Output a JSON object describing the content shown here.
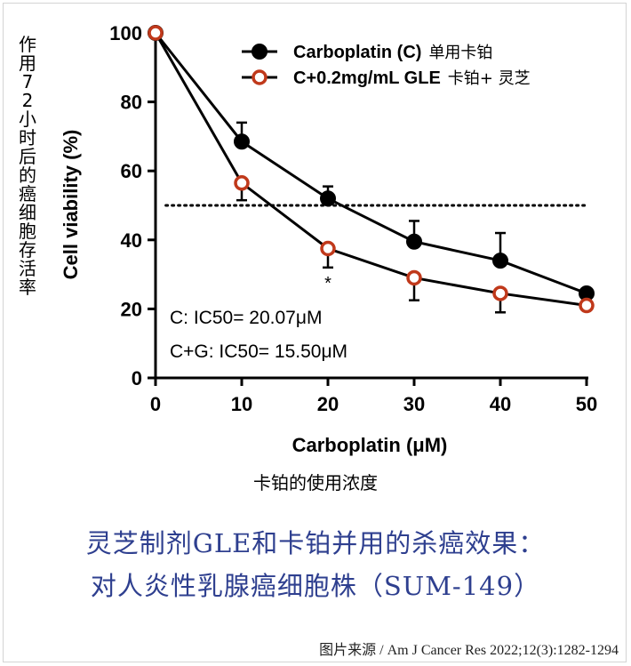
{
  "side_label": "作用72小时后的癌细胞存活率",
  "x_sublabel": "卡铂的使用浓度",
  "caption_line1": "灵芝制剂GLE和卡铂并用的杀癌效果：",
  "caption_line2": "对人炎性乳腺癌细胞株（SUM-149）",
  "source": "图片来源 / Am J Cancer Res 2022;12(3):1282-1294",
  "chart_data": {
    "type": "line",
    "xlabel": "Carboplatin (μM)",
    "ylabel": "Cell viability (%)",
    "xlim": [
      0,
      50
    ],
    "ylim": [
      0,
      100
    ],
    "xticks": [
      0,
      10,
      20,
      30,
      40,
      50
    ],
    "yticks": [
      0,
      20,
      40,
      60,
      80,
      100
    ],
    "x": [
      0,
      10,
      20,
      30,
      40,
      50
    ],
    "reference_line": 50,
    "legend_position": "top-right",
    "series": [
      {
        "name": "Carboplatin (C)",
        "name_cn": "单用卡铂",
        "marker": "filled-circle",
        "color": "#000000",
        "values": [
          100,
          68.5,
          52,
          39.5,
          34,
          24.5
        ],
        "errors": [
          0,
          5.5,
          3.5,
          6,
          8,
          0
        ]
      },
      {
        "name": "C+0.2mg/mL GLE",
        "name_cn": "卡铂+ 灵芝",
        "marker": "open-circle",
        "color": "#c0391b",
        "values": [
          100,
          56.5,
          37.5,
          29,
          24.5,
          21
        ],
        "errors": [
          0,
          5,
          5.5,
          6.5,
          5.5,
          0
        ]
      }
    ],
    "annotations": [
      {
        "text": "*",
        "x": 20
      },
      {
        "text": "C: IC50= 20.07μM"
      },
      {
        "text": "C+G: IC50= 15.50μM"
      }
    ]
  }
}
